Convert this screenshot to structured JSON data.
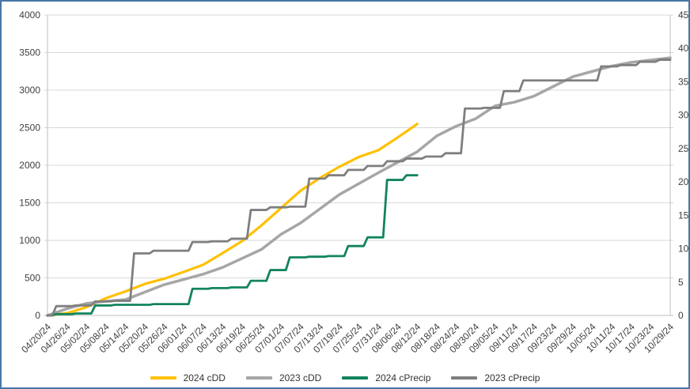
{
  "chart": {
    "background": "#ffffff",
    "frame_border_color": "#4677a8",
    "grid_color": "#d9d9d9",
    "axis_line_color": "#bfbfbf",
    "tick_label_color": "#404040"
  },
  "chart_data": {
    "type": "line",
    "title": "",
    "xlabel": "",
    "ylabel": "",
    "grid": true,
    "legend_position": "bottom",
    "categories": [
      "04/20/24",
      "04/26/24",
      "05/02/24",
      "05/08/24",
      "05/14/24",
      "05/20/24",
      "05/26/24",
      "06/01/24",
      "06/07/24",
      "06/13/24",
      "06/19/24",
      "06/25/24",
      "07/01/24",
      "07/07/24",
      "07/13/24",
      "07/19/24",
      "07/25/24",
      "07/31/24",
      "08/06/24",
      "08/12/24",
      "08/18/24",
      "08/24/24",
      "08/30/24",
      "09/05/24",
      "09/11/24",
      "09/17/24",
      "09/23/24",
      "09/29/24",
      "10/05/24",
      "10/11/24",
      "10/17/24",
      "10/23/24",
      "10/29/24"
    ],
    "left_axis": {
      "min": 0,
      "max": 4000,
      "ticks": [
        0,
        500,
        1000,
        1500,
        2000,
        2500,
        3000,
        3500,
        4000
      ]
    },
    "right_axis": {
      "min": 0,
      "max": 45,
      "ticks": [
        0,
        5,
        10,
        15,
        20,
        25,
        30,
        35,
        40,
        45
      ]
    },
    "series": [
      {
        "name": "2024 cDD",
        "color": "#FFC000",
        "axis": "left",
        "style": "linear",
        "width": 3.2,
        "values": [
          0,
          30,
          110,
          230,
          320,
          420,
          490,
          580,
          675,
          830,
          990,
          1200,
          1430,
          1660,
          1830,
          1980,
          2110,
          2200,
          2370,
          2550,
          null,
          null,
          null,
          null,
          null,
          null,
          null,
          null,
          null,
          null,
          null,
          null,
          null
        ]
      },
      {
        "name": "2023 cDD",
        "color": "#A6A6A6",
        "axis": "left",
        "style": "linear",
        "width": 3.5,
        "values": [
          0,
          90,
          160,
          190,
          210,
          310,
          410,
          480,
          550,
          640,
          760,
          880,
          1080,
          1230,
          1420,
          1610,
          1755,
          1900,
          2040,
          2180,
          2390,
          2520,
          2620,
          2790,
          2840,
          2920,
          3050,
          3180,
          3250,
          3320,
          3370,
          3400,
          3430
        ]
      },
      {
        "name": "2024 cPrecip",
        "color": "#12845C",
        "axis": "right",
        "style": "step",
        "width": 2.8,
        "values": [
          0,
          0.2,
          0.3,
          1.5,
          1.6,
          1.6,
          1.7,
          1.7,
          4.0,
          4.1,
          4.2,
          5.2,
          6.8,
          8.7,
          8.8,
          8.9,
          10.4,
          11.7,
          20.3,
          21.0,
          null,
          null,
          null,
          null,
          null,
          null,
          null,
          null,
          null,
          null,
          null,
          null,
          null
        ]
      },
      {
        "name": "2023 cPrecip",
        "color": "#7F7F7F",
        "axis": "right",
        "style": "step",
        "width": 2.8,
        "values": [
          0,
          1.4,
          1.5,
          2.1,
          2.2,
          9.3,
          9.7,
          9.7,
          11.0,
          11.1,
          11.5,
          15.8,
          16.2,
          16.3,
          20.5,
          21.0,
          21.8,
          22.4,
          23.1,
          23.5,
          23.8,
          24.3,
          31.0,
          31.1,
          33.6,
          35.2,
          35.2,
          35.2,
          35.2,
          37.3,
          37.5,
          38.0,
          38.3
        ]
      }
    ]
  }
}
